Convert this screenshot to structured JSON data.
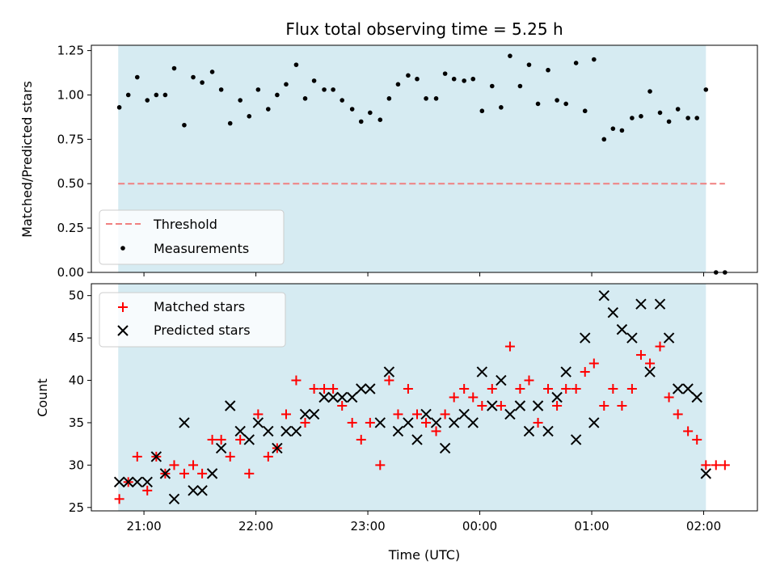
{
  "chart_data": {
    "title": "Flux total observing time = 5.25 h",
    "xlabel": "Time (UTC)",
    "x_tick_labels": [
      "21:00",
      "22:00",
      "23:00",
      "00:00",
      "01:00",
      "02:00"
    ],
    "x_ticks_hours": [
      21,
      22,
      23,
      24,
      25,
      26
    ],
    "xlim_hours": [
      20.53,
      26.48
    ],
    "shaded_span_hours": [
      20.77,
      26.02
    ],
    "colors": {
      "shade": "#add8e6",
      "threshold": "#f08080",
      "measurements": "#000000",
      "matched": "#ff0000",
      "predicted": "#000000"
    },
    "top": {
      "type": "scatter",
      "ylabel": "Matched/Predicted stars",
      "ylim": [
        0,
        1.28
      ],
      "y_ticks": [
        0.0,
        0.25,
        0.5,
        0.75,
        1.0,
        1.25
      ],
      "y_tick_labels": [
        "0.00",
        "0.25",
        "0.50",
        "0.75",
        "1.00",
        "1.25"
      ],
      "threshold": {
        "name": "Threshold",
        "value": 0.5,
        "x_range_hours": [
          20.77,
          26.19
        ]
      },
      "legend": {
        "placement": "lower-left",
        "entries": [
          "Threshold",
          "Measurements"
        ]
      },
      "series": [
        {
          "name": "Measurements",
          "x": [
            20.78,
            20.86,
            20.94,
            21.03,
            21.11,
            21.19,
            21.27,
            21.36,
            21.44,
            21.52,
            21.61,
            21.69,
            21.77,
            21.86,
            21.94,
            22.02,
            22.11,
            22.19,
            22.27,
            22.36,
            22.44,
            22.52,
            22.61,
            22.69,
            22.77,
            22.86,
            22.94,
            23.02,
            23.11,
            23.19,
            23.27,
            23.36,
            23.44,
            23.52,
            23.61,
            23.69,
            23.77,
            23.86,
            23.94,
            24.02,
            24.11,
            24.19,
            24.27,
            24.36,
            24.44,
            24.52,
            24.61,
            24.69,
            24.77,
            24.86,
            24.94,
            25.02,
            25.11,
            25.19,
            25.27,
            25.36,
            25.44,
            25.52,
            25.61,
            25.69,
            25.77,
            25.86,
            25.94,
            26.02,
            26.11,
            26.19
          ],
          "y": [
            0.93,
            1.0,
            1.1,
            0.97,
            1.0,
            1.0,
            1.15,
            0.83,
            1.1,
            1.07,
            1.13,
            1.03,
            0.84,
            0.97,
            0.88,
            1.03,
            0.92,
            1.0,
            1.06,
            1.17,
            0.98,
            1.08,
            1.03,
            1.03,
            0.97,
            0.92,
            0.85,
            0.9,
            0.86,
            0.98,
            1.06,
            1.11,
            1.09,
            0.98,
            0.98,
            1.12,
            1.09,
            1.08,
            1.09,
            0.91,
            1.05,
            0.93,
            1.22,
            1.05,
            1.17,
            0.95,
            1.14,
            0.97,
            0.95,
            1.18,
            0.91,
            1.2,
            0.75,
            0.81,
            0.8,
            0.87,
            0.88,
            1.02,
            0.9,
            0.85,
            0.92,
            0.87,
            0.87,
            1.03,
            0.0,
            0.0
          ]
        }
      ]
    },
    "bottom": {
      "type": "scatter",
      "ylabel": "Count",
      "ylim": [
        24.6,
        51.4
      ],
      "y_ticks": [
        25,
        30,
        35,
        40,
        45,
        50
      ],
      "y_tick_labels": [
        "25",
        "30",
        "35",
        "40",
        "45",
        "50"
      ],
      "legend": {
        "placement": "top-left",
        "entries": [
          "Matched stars",
          "Predicted stars"
        ]
      },
      "series": [
        {
          "name": "Matched stars",
          "marker": "plus",
          "x": [
            20.78,
            20.86,
            20.94,
            21.03,
            21.11,
            21.19,
            21.27,
            21.36,
            21.44,
            21.52,
            21.61,
            21.69,
            21.77,
            21.86,
            21.94,
            22.02,
            22.11,
            22.19,
            22.27,
            22.36,
            22.44,
            22.52,
            22.61,
            22.69,
            22.77,
            22.86,
            22.94,
            23.02,
            23.11,
            23.19,
            23.27,
            23.36,
            23.44,
            23.52,
            23.61,
            23.69,
            23.77,
            23.86,
            23.94,
            24.02,
            24.11,
            24.19,
            24.27,
            24.36,
            24.44,
            24.52,
            24.61,
            24.69,
            24.77,
            24.86,
            24.94,
            25.02,
            25.11,
            25.19,
            25.27,
            25.36,
            25.44,
            25.52,
            25.61,
            25.69,
            25.77,
            25.86,
            25.94,
            26.02,
            26.11,
            26.19
          ],
          "y": [
            26,
            28,
            31,
            27,
            31,
            29,
            30,
            29,
            30,
            29,
            33,
            33,
            31,
            33,
            29,
            36,
            31,
            32,
            36,
            40,
            35,
            39,
            39,
            39,
            37,
            35,
            33,
            35,
            30,
            40,
            36,
            39,
            36,
            35,
            34,
            36,
            38,
            39,
            38,
            37,
            39,
            37,
            44,
            39,
            40,
            35,
            39,
            37,
            39,
            39,
            41,
            42,
            37,
            39,
            37,
            39,
            43,
            42,
            44,
            38,
            36,
            34,
            33,
            30,
            30,
            30
          ]
        },
        {
          "name": "Predicted stars",
          "marker": "x",
          "x": [
            20.78,
            20.86,
            20.94,
            21.03,
            21.11,
            21.19,
            21.27,
            21.36,
            21.44,
            21.52,
            21.61,
            21.69,
            21.77,
            21.86,
            21.94,
            22.02,
            22.11,
            22.19,
            22.27,
            22.36,
            22.44,
            22.52,
            22.61,
            22.69,
            22.77,
            22.86,
            22.94,
            23.02,
            23.11,
            23.19,
            23.27,
            23.36,
            23.44,
            23.52,
            23.61,
            23.69,
            23.77,
            23.86,
            23.94,
            24.02,
            24.11,
            24.19,
            24.27,
            24.36,
            24.44,
            24.52,
            24.61,
            24.69,
            24.77,
            24.86,
            24.94,
            25.02,
            25.11,
            25.19,
            25.27,
            25.36,
            25.44,
            25.52,
            25.61,
            25.69,
            25.77,
            25.86,
            25.94,
            26.02
          ],
          "y": [
            28,
            28,
            28,
            28,
            31,
            29,
            26,
            35,
            27,
            27,
            29,
            32,
            37,
            34,
            33,
            35,
            34,
            32,
            34,
            34,
            36,
            36,
            38,
            38,
            38,
            38,
            39,
            39,
            35,
            41,
            34,
            35,
            33,
            36,
            35,
            32,
            35,
            36,
            35,
            41,
            37,
            40,
            36,
            37,
            34,
            37,
            34,
            38,
            41,
            33,
            45,
            35,
            50,
            48,
            46,
            45,
            49,
            41,
            49,
            45,
            39,
            39,
            38,
            29
          ]
        }
      ]
    }
  }
}
